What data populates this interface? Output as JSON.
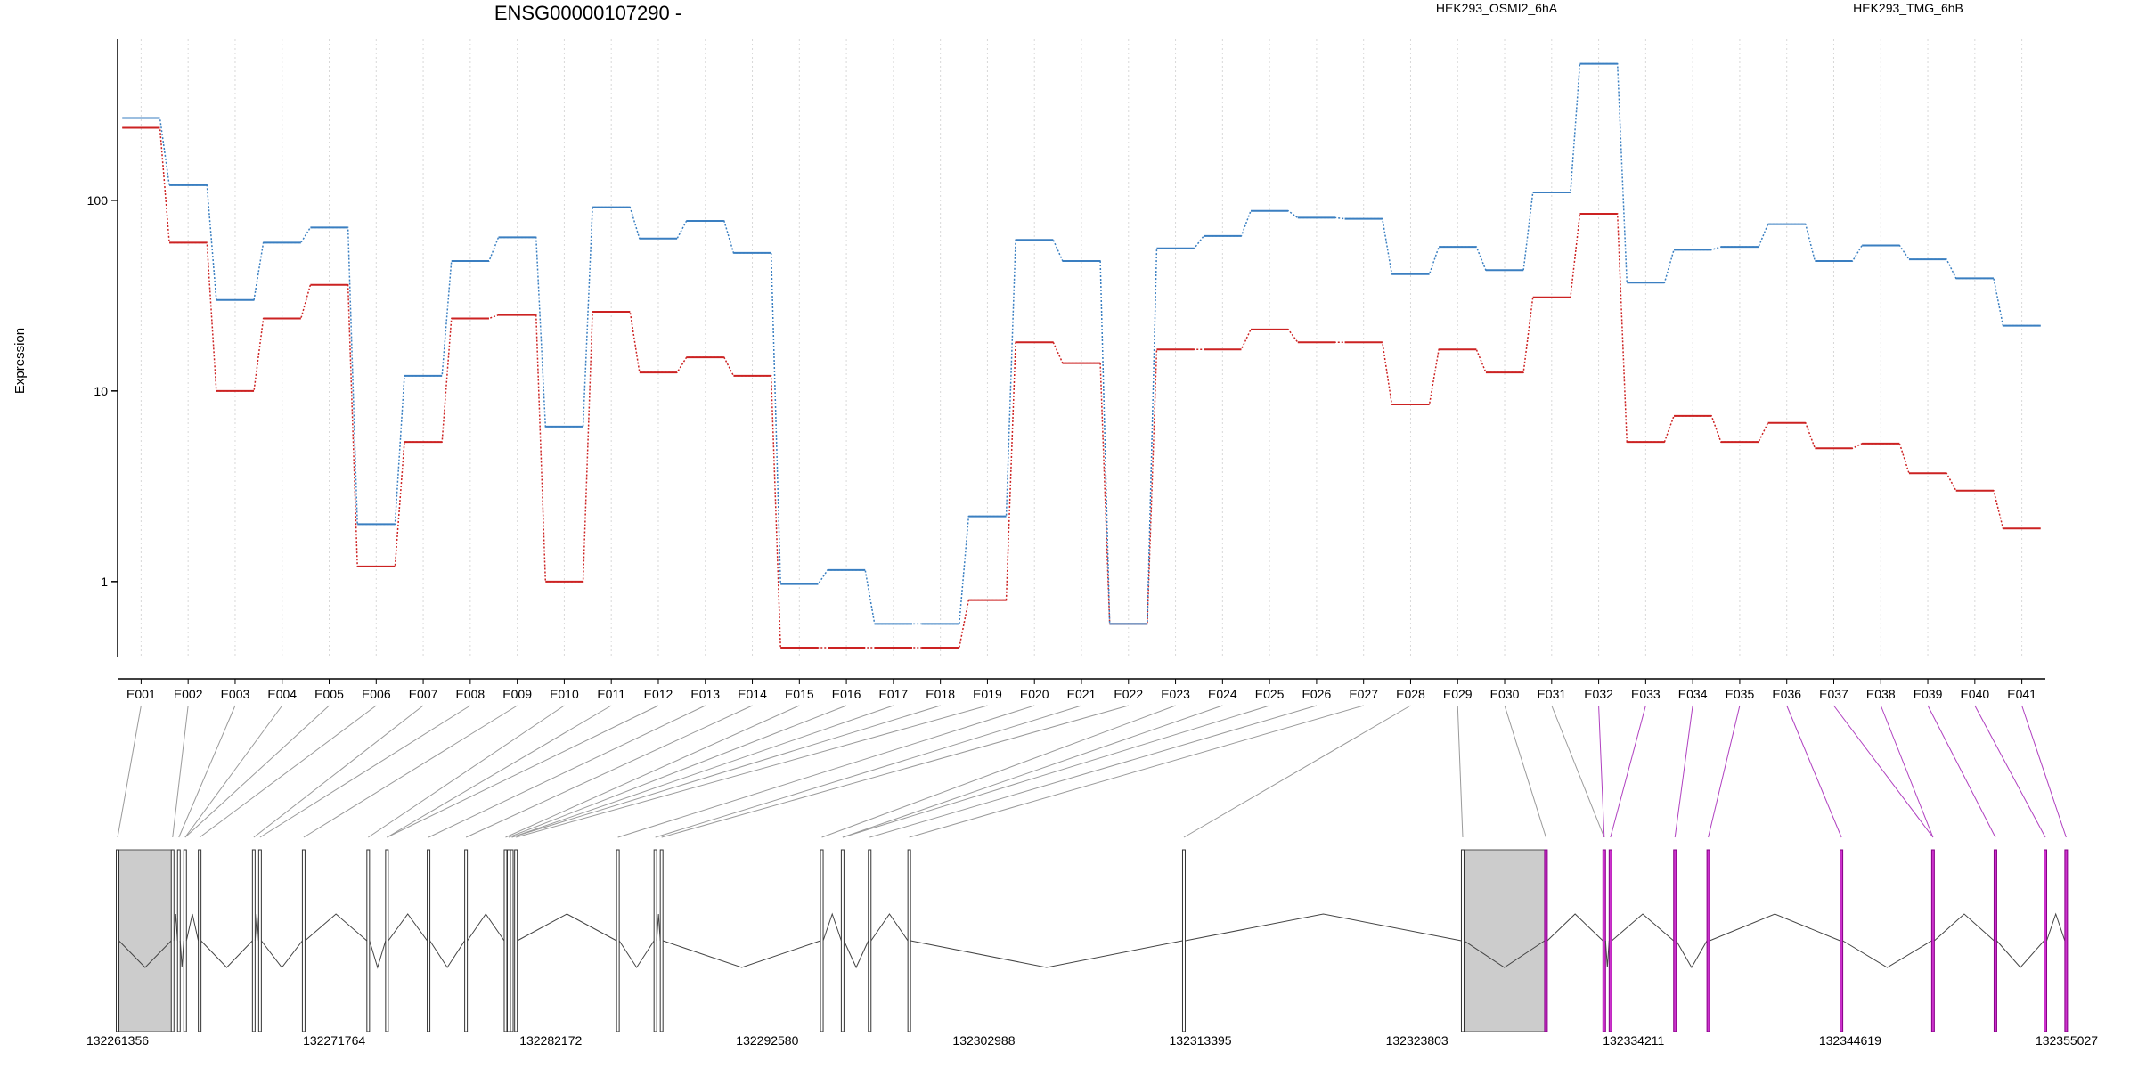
{
  "chart_data": {
    "type": "line",
    "title": "ENSG00000107290 -",
    "ylabel": "Expression",
    "yscale": "log",
    "ylim": [
      0.4,
      700
    ],
    "yticks": [
      1,
      10,
      100
    ],
    "ytick_labels": [
      "1",
      "10",
      "100"
    ],
    "grid": "vertical dotted",
    "legend_placement": "top",
    "categories": [
      "E001",
      "E002",
      "E003",
      "E004",
      "E005",
      "E006",
      "E007",
      "E008",
      "E009",
      "E010",
      "E011",
      "E012",
      "E013",
      "E014",
      "E015",
      "E016",
      "E017",
      "E018",
      "E019",
      "E020",
      "E021",
      "E022",
      "E023",
      "E024",
      "E025",
      "E026",
      "E027",
      "E028",
      "E029",
      "E030",
      "E031",
      "E032",
      "E033",
      "E034",
      "E035",
      "E036",
      "E037",
      "E038",
      "E039",
      "E040",
      "E041"
    ],
    "series": [
      {
        "name": "HEK293_OSMI2_6hA",
        "color": "#cc2222",
        "values": [
          240,
          60,
          10,
          24,
          36,
          1.2,
          5.4,
          24,
          25,
          1.0,
          26,
          12.5,
          15,
          12,
          0.45,
          0.45,
          0.45,
          0.45,
          0.8,
          18,
          14,
          0.6,
          16.5,
          16.5,
          21,
          18,
          18,
          8.5,
          16.5,
          12.5,
          31,
          85,
          5.4,
          7.4,
          5.4,
          6.8,
          5.0,
          5.3,
          3.7,
          3.0,
          1.9
        ]
      },
      {
        "name": "HEK293_TMG_6hB",
        "color": "#3a7fc1",
        "values": [
          270,
          120,
          30,
          60,
          72,
          2.0,
          12,
          48,
          64,
          6.5,
          92,
          63,
          78,
          53,
          0.97,
          1.15,
          0.6,
          0.6,
          2.2,
          62,
          48,
          0.6,
          56,
          65,
          88,
          81,
          80,
          41,
          57,
          43,
          110,
          520,
          37,
          55,
          57,
          75,
          48,
          58,
          49,
          39,
          22
        ]
      }
    ],
    "gene_model": {
      "coordinates": [
        "132261356",
        "132271764",
        "132282172",
        "132292580",
        "132302988",
        "132313395",
        "132323803",
        "132334211",
        "132344619",
        "132355027"
      ],
      "exon_positions": [
        132261356,
        132264000,
        132264300,
        132264600,
        132265300,
        132267900,
        132268200,
        132270300,
        132273400,
        132274300,
        132276300,
        132278100,
        132280000,
        132280150,
        132280300,
        132280500,
        132285400,
        132287200,
        132287500,
        132295200,
        132296200,
        132297500,
        132299400,
        132312600,
        132326000,
        132330000,
        132332800,
        132333100,
        132336200,
        132337800,
        132344200,
        132348600,
        132351600,
        132354000,
        132355000
      ],
      "highlight_color": "#cc33cc"
    }
  }
}
